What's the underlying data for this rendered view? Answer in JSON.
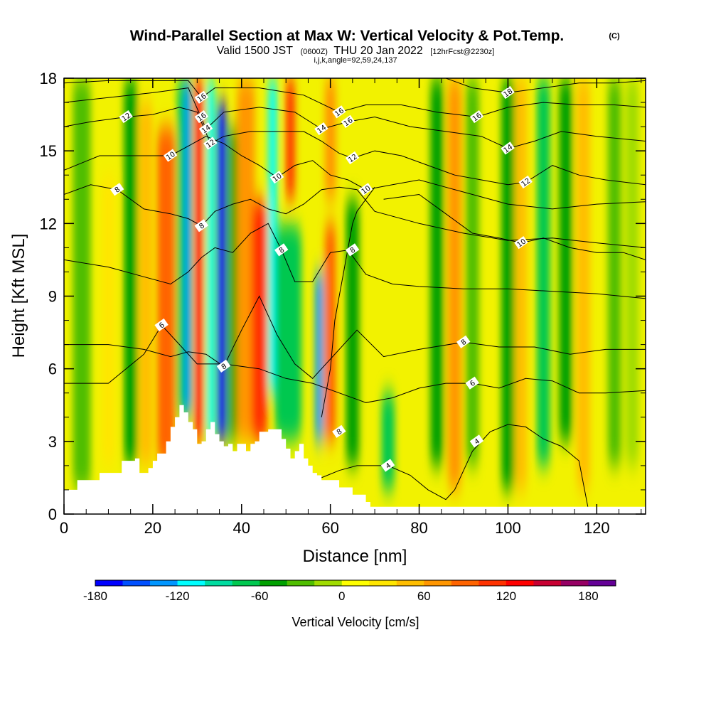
{
  "chart_data": {
    "type": "heatmap",
    "title": "Wind-Parallel Section at Max W: Vertical Velocity & Pot.Temp.",
    "title_badge": "(C)",
    "subtitle_parts": [
      "Valid 1500 JST",
      "(0600Z)",
      "THU 20 Jan 2022",
      "[12hrFcst@2230z]"
    ],
    "subtitle2": "i,j,k,angle=92,59,24,137",
    "xlabel": "Distance [nm]",
    "ylabel": "Height [Kft MSL]",
    "xlim": [
      0,
      131
    ],
    "ylim": [
      0,
      18
    ],
    "x_ticks": [
      0,
      20,
      40,
      60,
      80,
      100,
      120
    ],
    "y_ticks": [
      0,
      3,
      6,
      9,
      12,
      15,
      18
    ],
    "colorbar": {
      "title": "Vertical Velocity [cm/s]",
      "range": [
        -180,
        200
      ],
      "step": 20,
      "tick_values": [
        -180,
        -120,
        -60,
        0,
        60,
        120,
        180
      ],
      "colors": [
        "#0000ff",
        "#0050ff",
        "#0096ff",
        "#00ffff",
        "#00dca0",
        "#00c850",
        "#00a000",
        "#50be00",
        "#a0dc00",
        "#ffff00",
        "#ffe600",
        "#ffbe00",
        "#ff9600",
        "#ff6400",
        "#ff3200",
        "#ff0000",
        "#c80032",
        "#960064",
        "#640096"
      ]
    },
    "vertical_velocity_bands": [
      {
        "x": 4,
        "w": 4,
        "v": -30,
        "zmin": 1,
        "zmax": 18
      },
      {
        "x": 10,
        "w": 3,
        "v": 20,
        "zmin": 2,
        "zmax": 14
      },
      {
        "x": 15,
        "w": 3,
        "v": -50,
        "zmin": 2,
        "zmax": 18
      },
      {
        "x": 18.5,
        "w": 3,
        "v": 50,
        "zmin": 2,
        "zmax": 17
      },
      {
        "x": 23,
        "w": 4,
        "v": 95,
        "zmin": 2,
        "zmax": 16
      },
      {
        "x": 26.5,
        "w": 2,
        "v": -70,
        "zmin": 4,
        "zmax": 18
      },
      {
        "x": 28,
        "w": 1.6,
        "v": -125,
        "zmin": 4,
        "zmax": 18
      },
      {
        "x": 30.5,
        "w": 1.8,
        "v": 130,
        "zmin": 3,
        "zmax": 18
      },
      {
        "x": 33,
        "w": 1.8,
        "v": -110,
        "zmin": 3,
        "zmax": 18
      },
      {
        "x": 35.5,
        "w": 2,
        "v": -170,
        "zmin": 3,
        "zmax": 17
      },
      {
        "x": 38,
        "w": 2,
        "v": -60,
        "zmin": 3,
        "zmax": 16
      },
      {
        "x": 41,
        "w": 4,
        "v": 70,
        "zmin": 3,
        "zmax": 18
      },
      {
        "x": 44,
        "w": 3.5,
        "v": 115,
        "zmin": 3,
        "zmax": 13
      },
      {
        "x": 47,
        "w": 2,
        "v": -110,
        "zmin": 5,
        "zmax": 18
      },
      {
        "x": 50.5,
        "w": 6,
        "v": -70,
        "zmin": 3,
        "zmax": 12
      },
      {
        "x": 51,
        "w": 2,
        "v": 110,
        "zmin": 13,
        "zmax": 18
      },
      {
        "x": 57.5,
        "w": 1.8,
        "v": -130,
        "zmin": 3,
        "zmax": 10
      },
      {
        "x": 60,
        "w": 2.5,
        "v": 90,
        "zmin": 3,
        "zmax": 12
      },
      {
        "x": 60,
        "w": 2.5,
        "v": 70,
        "zmin": 13,
        "zmax": 18
      },
      {
        "x": 65,
        "w": 3,
        "v": -60,
        "zmin": 2,
        "zmax": 13
      },
      {
        "x": 73,
        "w": 3,
        "v": -70,
        "zmin": 1,
        "zmax": 5
      },
      {
        "x": 84,
        "w": 3,
        "v": -50,
        "zmin": 2,
        "zmax": 18
      },
      {
        "x": 88,
        "w": 3,
        "v": 60,
        "zmin": 1,
        "zmax": 18
      },
      {
        "x": 92,
        "w": 3,
        "v": -40,
        "zmin": 2,
        "zmax": 18
      },
      {
        "x": 100,
        "w": 3,
        "v": -60,
        "zmin": 1,
        "zmax": 18
      },
      {
        "x": 103,
        "w": 2.5,
        "v": 50,
        "zmin": 1,
        "zmax": 18
      },
      {
        "x": 108,
        "w": 3,
        "v": -70,
        "zmin": 2,
        "zmax": 18
      },
      {
        "x": 113,
        "w": 3,
        "v": -50,
        "zmin": 3,
        "zmax": 18
      },
      {
        "x": 117,
        "w": 3,
        "v": 40,
        "zmin": 1,
        "zmax": 18
      },
      {
        "x": 124,
        "w": 3,
        "v": -40,
        "zmin": 2,
        "zmax": 18
      },
      {
        "x": 128,
        "w": 3,
        "v": -20,
        "zmin": 2,
        "zmax": 18
      }
    ],
    "terrain": {
      "x": [
        0,
        3,
        3,
        8,
        8,
        13,
        13,
        16,
        16,
        17,
        17,
        19,
        19,
        20,
        20,
        21,
        21,
        23,
        23,
        24,
        24,
        25,
        25,
        26,
        26,
        27,
        27,
        28,
        28,
        29,
        29,
        30,
        30,
        31,
        31,
        32,
        32,
        33,
        33,
        34,
        34,
        35,
        35,
        36,
        36,
        37,
        37,
        38,
        38,
        39,
        39,
        41,
        41,
        42,
        42,
        43,
        43,
        44,
        44,
        46,
        46,
        49,
        49,
        50,
        50,
        51,
        51,
        52,
        52,
        53,
        53,
        54,
        54,
        55,
        55,
        56,
        56,
        57,
        57,
        58,
        58,
        62,
        62,
        65,
        65,
        68,
        68,
        69,
        69,
        131
      ],
      "z": [
        1.0,
        1.0,
        1.4,
        1.4,
        1.7,
        1.7,
        2.2,
        2.2,
        2.3,
        2.3,
        1.7,
        1.7,
        1.9,
        1.9,
        2.2,
        2.2,
        2.5,
        2.5,
        3.0,
        3.0,
        3.6,
        3.6,
        4.0,
        4.0,
        4.5,
        4.5,
        4.2,
        4.2,
        3.8,
        3.8,
        3.5,
        3.5,
        2.9,
        2.9,
        3.0,
        3.0,
        3.5,
        3.5,
        3.8,
        3.8,
        3.3,
        3.3,
        3.0,
        3.0,
        2.8,
        2.8,
        2.9,
        2.9,
        2.6,
        2.6,
        2.9,
        2.9,
        2.6,
        2.6,
        2.9,
        2.9,
        3.0,
        3.0,
        3.4,
        3.4,
        3.5,
        3.5,
        3.1,
        3.1,
        2.7,
        2.7,
        2.3,
        2.3,
        2.6,
        2.6,
        2.9,
        2.9,
        2.3,
        2.3,
        2.0,
        2.0,
        1.7,
        1.7,
        1.6,
        1.6,
        1.4,
        1.4,
        1.1,
        1.1,
        0.8,
        0.8,
        0.5,
        0.5,
        0.3,
        0.3
      ]
    },
    "pot_temp_contours": [
      {
        "label": "4",
        "label_at": [
          [
            73,
            2.0
          ],
          [
            93,
            3.0
          ]
        ],
        "x": [
          58,
          62,
          66,
          70,
          73,
          78,
          82,
          86,
          88,
          92,
          96,
          100,
          104,
          108,
          112,
          116,
          118
        ],
        "z": [
          1.5,
          1.8,
          2.0,
          2.0,
          2.0,
          1.6,
          1.0,
          0.6,
          1.0,
          2.6,
          3.4,
          3.7,
          3.6,
          3.1,
          2.8,
          2.2,
          0.3
        ]
      },
      {
        "label": "6",
        "label_at": [
          [
            22,
            7.8
          ],
          [
            92,
            5.4
          ]
        ],
        "x": [
          0,
          10,
          18,
          22,
          26,
          30,
          36,
          44,
          50,
          56,
          62,
          68,
          74,
          80,
          86,
          92,
          98,
          104,
          110,
          116,
          122,
          131
        ],
        "z": [
          5.4,
          5.4,
          6.6,
          7.8,
          7.0,
          6.2,
          6.2,
          6.0,
          5.6,
          5.4,
          5.0,
          4.6,
          4.8,
          5.2,
          5.4,
          5.4,
          5.2,
          5.6,
          5.5,
          5.0,
          5.0,
          5.1
        ]
      },
      {
        "label": "8",
        "label_at": [
          [
            36,
            6.1
          ],
          [
            90,
            7.1
          ]
        ],
        "x": [
          0,
          10,
          18,
          24,
          28,
          32,
          36,
          40,
          44,
          48,
          52,
          56,
          60,
          66,
          72,
          80,
          90,
          98,
          106,
          114,
          122,
          131
        ],
        "z": [
          7.0,
          7.0,
          6.8,
          6.5,
          6.7,
          6.6,
          6.1,
          7.6,
          9.0,
          7.4,
          6.2,
          5.6,
          6.4,
          7.6,
          6.5,
          6.8,
          7.1,
          6.9,
          6.9,
          6.6,
          6.8,
          6.8
        ]
      },
      {
        "label": "8",
        "label_at": [
          [
            62,
            3.4
          ]
        ],
        "x": [
          58,
          60,
          61,
          62,
          63,
          64,
          65,
          66,
          68,
          70
        ],
        "z": [
          4.0,
          6.0,
          8.0,
          9.0,
          10.0,
          11.0,
          12.0,
          12.5,
          13.0,
          13.5
        ]
      },
      {
        "label": "8",
        "label_at": [
          [
            49,
            10.9
          ],
          [
            65,
            10.9
          ]
        ],
        "x": [
          0,
          10,
          18,
          24,
          28,
          31,
          34,
          38,
          42,
          46,
          49,
          52,
          56,
          60,
          64,
          68,
          74,
          80,
          90,
          100,
          110,
          120,
          131
        ],
        "z": [
          10.5,
          10.2,
          9.8,
          9.5,
          10.0,
          10.6,
          11.0,
          10.8,
          11.6,
          12.0,
          10.9,
          9.6,
          9.6,
          10.8,
          10.9,
          9.9,
          9.5,
          9.4,
          9.3,
          9.3,
          9.2,
          9.1,
          8.9
        ]
      },
      {
        "label": "8",
        "label_at": [
          [
            12,
            13.4
          ],
          [
            31,
            11.9
          ]
        ],
        "x": [
          0,
          6,
          12,
          18,
          24,
          28,
          31,
          34,
          38,
          42,
          46,
          50,
          54,
          58,
          62,
          66,
          70,
          80,
          90,
          100,
          110,
          120,
          131
        ],
        "z": [
          13.2,
          13.6,
          13.4,
          12.6,
          12.4,
          12.2,
          11.9,
          12.5,
          12.8,
          13.0,
          12.6,
          12.4,
          12.8,
          13.4,
          13.5,
          13.4,
          12.5,
          12.0,
          11.6,
          11.3,
          11.4,
          11.2,
          11.0
        ]
      },
      {
        "label": "10",
        "label_at": [
          [
            103,
            11.2
          ]
        ],
        "x": [
          72,
          80,
          86,
          92,
          98,
          103,
          108,
          114,
          120,
          126,
          131
        ],
        "z": [
          13.0,
          13.2,
          12.4,
          11.6,
          11.4,
          11.2,
          11.4,
          11.0,
          10.8,
          10.8,
          10.5
        ]
      },
      {
        "label": "10",
        "label_at": [
          [
            24,
            14.8
          ],
          [
            48,
            13.9
          ],
          [
            68,
            13.4
          ]
        ],
        "x": [
          0,
          8,
          16,
          24,
          28,
          32,
          36,
          40,
          44,
          48,
          52,
          56,
          60,
          64,
          68,
          74,
          80,
          86,
          92,
          100,
          110,
          120,
          131
        ],
        "z": [
          14.2,
          14.8,
          14.8,
          14.8,
          15.2,
          15.6,
          15.3,
          14.8,
          14.4,
          13.9,
          14.4,
          14.6,
          14.0,
          13.8,
          13.4,
          13.6,
          13.8,
          13.5,
          13.2,
          12.8,
          12.6,
          12.8,
          12.9
        ]
      },
      {
        "label": "12",
        "label_at": [
          [
            14,
            16.4
          ],
          [
            33,
            15.3
          ],
          [
            65,
            14.7
          ],
          [
            104,
            13.7
          ]
        ],
        "x": [
          0,
          6,
          14,
          20,
          26,
          30,
          33,
          36,
          42,
          48,
          54,
          58,
          62,
          65,
          70,
          76,
          82,
          88,
          94,
          100,
          104,
          110,
          116,
          122,
          131
        ],
        "z": [
          16.0,
          16.2,
          16.4,
          16.5,
          16.8,
          16.6,
          15.3,
          15.6,
          15.8,
          15.8,
          15.8,
          15.4,
          14.9,
          14.7,
          15.0,
          14.8,
          14.4,
          14.0,
          13.8,
          13.6,
          13.7,
          14.4,
          14.0,
          13.8,
          13.6
        ]
      },
      {
        "label": "14",
        "label_at": [
          [
            32,
            15.9
          ],
          [
            58,
            15.9
          ],
          [
            100,
            15.1
          ]
        ],
        "x": [
          0,
          10,
          20,
          28,
          32,
          36,
          44,
          52,
          58,
          64,
          70,
          78,
          86,
          94,
          100,
          106,
          112,
          120,
          131
        ],
        "z": [
          17.0,
          17.2,
          17.4,
          17.6,
          15.9,
          16.6,
          16.8,
          16.6,
          15.9,
          16.2,
          16.4,
          16.0,
          15.8,
          15.6,
          15.1,
          15.4,
          15.8,
          15.6,
          15.4
        ]
      },
      {
        "label": "16",
        "label_at": [
          [
            31,
            17.2
          ],
          [
            31,
            16.4
          ],
          [
            62,
            16.6
          ],
          [
            64,
            16.2
          ],
          [
            93,
            16.4
          ]
        ],
        "x": [
          0,
          10,
          20,
          28,
          31,
          34,
          44,
          54,
          62,
          68,
          76,
          84,
          93,
          100,
          108,
          116,
          124,
          131
        ],
        "z": [
          17.8,
          17.9,
          17.9,
          17.9,
          17.2,
          17.6,
          17.6,
          17.3,
          16.6,
          16.9,
          16.9,
          16.6,
          16.4,
          16.8,
          17.0,
          16.9,
          16.9,
          16.8
        ]
      },
      {
        "label": "18",
        "label_at": [
          [
            100,
            17.4
          ]
        ],
        "x": [
          86,
          92,
          100,
          108,
          116,
          124,
          131
        ],
        "z": [
          18.0,
          17.6,
          17.4,
          17.6,
          17.8,
          17.8,
          17.9
        ]
      }
    ]
  }
}
